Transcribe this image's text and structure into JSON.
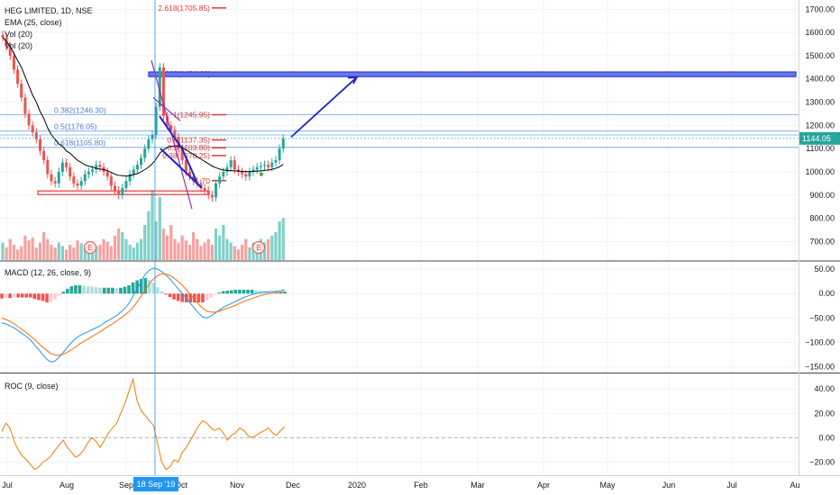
{
  "legend": {
    "symbol": "HEG LIMITED, 1D, NSE",
    "ema": "EMA (25, close)",
    "vol1": "Vol (20)",
    "vol2": "Vol (20)"
  },
  "macd_label": "MACD (12, 26, close, 9)",
  "roc_label": "ROC (9, close)",
  "x_axis_labels": [
    "Jul",
    "Aug",
    "Sep",
    "Oct",
    "Nov",
    "Dec",
    "2020",
    "Feb",
    "Mar",
    "Apr",
    "May",
    "Jun",
    "Jul",
    "Au"
  ],
  "x_axis_highlight": "18 Sep '19",
  "current_price_tag": "1144.05",
  "earnings_marker": "E",
  "colors": {
    "up": "#26a69a",
    "down": "#ef5350",
    "ema": "#000000",
    "macd": "#2196f3",
    "signal": "#ff6d00",
    "roc": "#f57c00",
    "fib": "#4a7cd6",
    "fib_red": "#e53935",
    "arrow": "#1a23cc",
    "box": "#2c3ad6"
  },
  "fib_labels": [
    {
      "text": "2.618(1705.85)",
      "price": 1705.85,
      "color": "red"
    },
    {
      "text": "1.618(1421.60)",
      "price": 1421.6,
      "color": "purple"
    },
    {
      "text": "0.382(1246.30)",
      "price": 1246.3,
      "color": "blue"
    },
    {
      "text": "1(1245.95)",
      "price": 1245.95,
      "color": "red"
    },
    {
      "text": "0.5(1176.05)",
      "price": 1176.05,
      "color": "blue"
    },
    {
      "text": "0.618(1105.80)",
      "price": 1105.8,
      "color": "blue"
    },
    {
      "text": "0.5(1137.35)",
      "price": 1137.35,
      "color": "red"
    },
    {
      "text": "0.5(1103.80)",
      "price": 1103.8,
      "color": "red"
    },
    {
      "text": "0.38(1070.25)",
      "price": 1070.25,
      "color": "red"
    },
    {
      "text": ".70",
      "price": 962,
      "color": "red"
    }
  ],
  "chart_data": [
    {
      "type": "candlestick",
      "title": "HEG LIMITED, 1D, NSE",
      "ylim": [
        620,
        1740
      ],
      "y_ticks": [
        700,
        800,
        900,
        1000,
        1100,
        1200,
        1300,
        1400,
        1500,
        1600,
        1700
      ],
      "y_tick_labels": [
        "700.00",
        "800.00",
        "900.00",
        "1000.00",
        "1100.00",
        "1200.00",
        "1300.00",
        "1400.00",
        "1500.00",
        "1600.00",
        "1700.00"
      ],
      "series": [
        {
          "name": "close",
          "values": [
            1580,
            1540,
            1500,
            1440,
            1380,
            1320,
            1250,
            1200,
            1170,
            1140,
            1090,
            1050,
            990,
            960,
            950,
            1000,
            1040,
            1020,
            980,
            950,
            940,
            960,
            990,
            1000,
            1010,
            1030,
            1020,
            1000,
            980,
            940,
            920,
            900,
            930,
            960,
            990,
            1010,
            1030,
            1060,
            1100,
            1140,
            1160,
            1280,
            1450,
            1240,
            1200,
            1180,
            1150,
            1100,
            1050,
            1000,
            980,
            960,
            950,
            930,
            920,
            900,
            890,
            950,
            980,
            1000,
            1020,
            1050,
            1010,
            1000,
            990,
            980,
            1000,
            1010,
            1020,
            1025,
            1030,
            1020,
            1040,
            1050,
            1100,
            1144
          ]
        },
        {
          "name": "EMA (25, close)",
          "values": [
            1580,
            1560,
            1540,
            1510,
            1480,
            1450,
            1410,
            1370,
            1330,
            1300,
            1260,
            1230,
            1190,
            1160,
            1140,
            1120,
            1110,
            1090,
            1080,
            1065,
            1050,
            1040,
            1030,
            1025,
            1020,
            1015,
            1012,
            1010,
            1005,
            998,
            990,
            985,
            984,
            982,
            984,
            988,
            992,
            1000,
            1010,
            1020,
            1035,
            1055,
            1080,
            1095,
            1105,
            1110,
            1112,
            1110,
            1105,
            1095,
            1085,
            1075,
            1065,
            1055,
            1045,
            1035,
            1025,
            1018,
            1012,
            1008,
            1006,
            1005,
            1004,
            1003,
            1002,
            1001,
            1001,
            1002,
            1003,
            1004,
            1006,
            1008,
            1011,
            1015,
            1022,
            1032
          ]
        }
      ],
      "volume": [
        0.25,
        0.18,
        0.3,
        0.22,
        0.15,
        0.2,
        0.35,
        0.28,
        0.32,
        0.18,
        0.25,
        0.4,
        0.3,
        0.22,
        0.18,
        0.25,
        0.2,
        0.15,
        0.22,
        0.18,
        0.28,
        0.24,
        0.2,
        0.18,
        0.15,
        0.2,
        0.22,
        0.3,
        0.26,
        0.2,
        0.35,
        0.45,
        0.4,
        0.3,
        0.22,
        0.18,
        0.25,
        0.3,
        0.5,
        0.7,
        1.0,
        0.55,
        0.9,
        0.45,
        0.35,
        0.5,
        0.3,
        0.25,
        0.35,
        0.28,
        0.22,
        0.4,
        0.3,
        0.2,
        0.25,
        0.3,
        0.22,
        0.45,
        0.35,
        0.5,
        0.3,
        0.25,
        0.2,
        0.15,
        0.22,
        0.3,
        0.18,
        0.25,
        0.2,
        0.3,
        0.25,
        0.3,
        0.35,
        0.4,
        0.55,
        0.6
      ],
      "annotations": [
        {
          "text": "2.618(1705.85)"
        },
        {
          "text": "1.618(1421.60)"
        },
        {
          "text": "0.382(1246.30)"
        },
        {
          "text": "1(1245.95)"
        },
        {
          "text": "0.5(1176.05)"
        },
        {
          "text": "0.618(1105.80)"
        }
      ]
    },
    {
      "type": "line",
      "title": "MACD (12, 26, close, 9)",
      "ylim": [
        -160,
        65
      ],
      "y_ticks": [
        50,
        0,
        -50,
        -100,
        -150
      ],
      "y_tick_labels": [
        "50.00",
        "0.00",
        "−50.00",
        "−100.00",
        "−150.00"
      ],
      "series": [
        {
          "name": "MACD",
          "values": [
            -60,
            -62,
            -66,
            -70,
            -76,
            -82,
            -88,
            -95,
            -105,
            -115,
            -125,
            -135,
            -140,
            -138,
            -130,
            -120,
            -110,
            -100,
            -92,
            -86,
            -82,
            -78,
            -74,
            -70,
            -66,
            -60,
            -55,
            -50,
            -45,
            -38,
            -30,
            -20,
            -5,
            10,
            25,
            40,
            48,
            52,
            50,
            45,
            38,
            30,
            20,
            10,
            0,
            -10,
            -20,
            -30,
            -40,
            -48,
            -50,
            -46,
            -40,
            -34,
            -28,
            -24,
            -20,
            -16,
            -12,
            -8,
            -5,
            -2,
            0,
            2,
            3,
            4,
            4,
            5,
            6,
            8
          ]
        },
        {
          "name": "Signal",
          "values": [
            -50,
            -53,
            -57,
            -62,
            -68,
            -74,
            -80,
            -87,
            -94,
            -102,
            -110,
            -117,
            -123,
            -126,
            -126,
            -124,
            -120,
            -115,
            -109,
            -103,
            -98,
            -93,
            -88,
            -83,
            -78,
            -72,
            -67,
            -62,
            -56,
            -50,
            -44,
            -37,
            -28,
            -17,
            -5,
            8,
            20,
            30,
            37,
            40,
            40,
            37,
            32,
            25,
            17,
            8,
            -2,
            -12,
            -22,
            -30,
            -36,
            -38,
            -38,
            -36,
            -33,
            -30,
            -27,
            -24,
            -20,
            -16,
            -13,
            -10,
            -7,
            -4,
            -2,
            0,
            1,
            2,
            3,
            4
          ]
        },
        {
          "name": "Histogram",
          "values": [
            -10,
            -9,
            -9,
            -8,
            -8,
            -8,
            -8,
            -8,
            -11,
            -13,
            -15,
            -18,
            -17,
            -12,
            -4,
            4,
            10,
            15,
            17,
            17,
            16,
            15,
            14,
            13,
            12,
            12,
            12,
            12,
            11,
            12,
            14,
            17,
            23,
            27,
            30,
            32,
            28,
            22,
            13,
            5,
            -2,
            -7,
            -12,
            -15,
            -17,
            -18,
            -18,
            -18,
            -18,
            -18,
            -14,
            -8,
            -2,
            2,
            5,
            6,
            7,
            8,
            8,
            8,
            8,
            8,
            7,
            6,
            5,
            4,
            3,
            3,
            3,
            4
          ]
        }
      ]
    },
    {
      "type": "line",
      "title": "ROC (9, close)",
      "ylim": [
        -30,
        52
      ],
      "y_ticks": [
        40,
        20,
        0,
        -20
      ],
      "y_tick_labels": [
        "40.00",
        "20.00",
        "0.00",
        "−20.00"
      ],
      "series": [
        {
          "name": "ROC",
          "values": [
            5,
            12,
            8,
            -3,
            -10,
            -15,
            -18,
            -22,
            -26,
            -24,
            -20,
            -18,
            -15,
            -10,
            -6,
            -2,
            -8,
            -12,
            -16,
            -14,
            -10,
            -4,
            0,
            -3,
            -8,
            -2,
            4,
            8,
            12,
            20,
            28,
            38,
            48,
            30,
            22,
            18,
            14,
            10,
            -5,
            -20,
            -26,
            -24,
            -18,
            -20,
            -12,
            -8,
            -2,
            4,
            10,
            14,
            12,
            8,
            6,
            8,
            4,
            -2,
            2,
            4,
            8,
            6,
            2,
            0,
            2,
            4,
            6,
            8,
            4,
            2,
            6,
            9
          ]
        }
      ]
    }
  ]
}
